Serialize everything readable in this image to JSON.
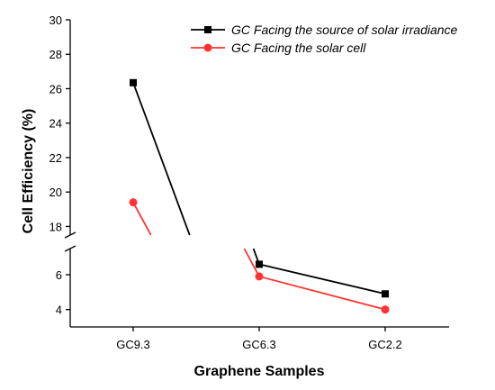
{
  "chart_data": {
    "type": "line",
    "xlabel": "Graphene Samples",
    "ylabel": "Cell Efficiency (%)",
    "categories": [
      "GC9.3",
      "GC6.3",
      "GC2.2"
    ],
    "y_axis_break": [
      7.5,
      17.5
    ],
    "y_ranges": [
      [
        3,
        7.5
      ],
      [
        17.5,
        30
      ]
    ],
    "y_ticks": [
      4,
      6,
      18,
      20,
      22,
      24,
      26,
      28,
      30
    ],
    "legend_position": "top-right",
    "grid": false,
    "series": [
      {
        "name": "GC Facing the source of solar irradiance",
        "values": [
          26.35,
          6.6,
          4.9
        ],
        "color": "#000000",
        "marker": "square"
      },
      {
        "name": "GC Facing the solar cell",
        "values": [
          19.4,
          5.9,
          4.0
        ],
        "color": "#ff3333",
        "marker": "circle"
      }
    ]
  }
}
